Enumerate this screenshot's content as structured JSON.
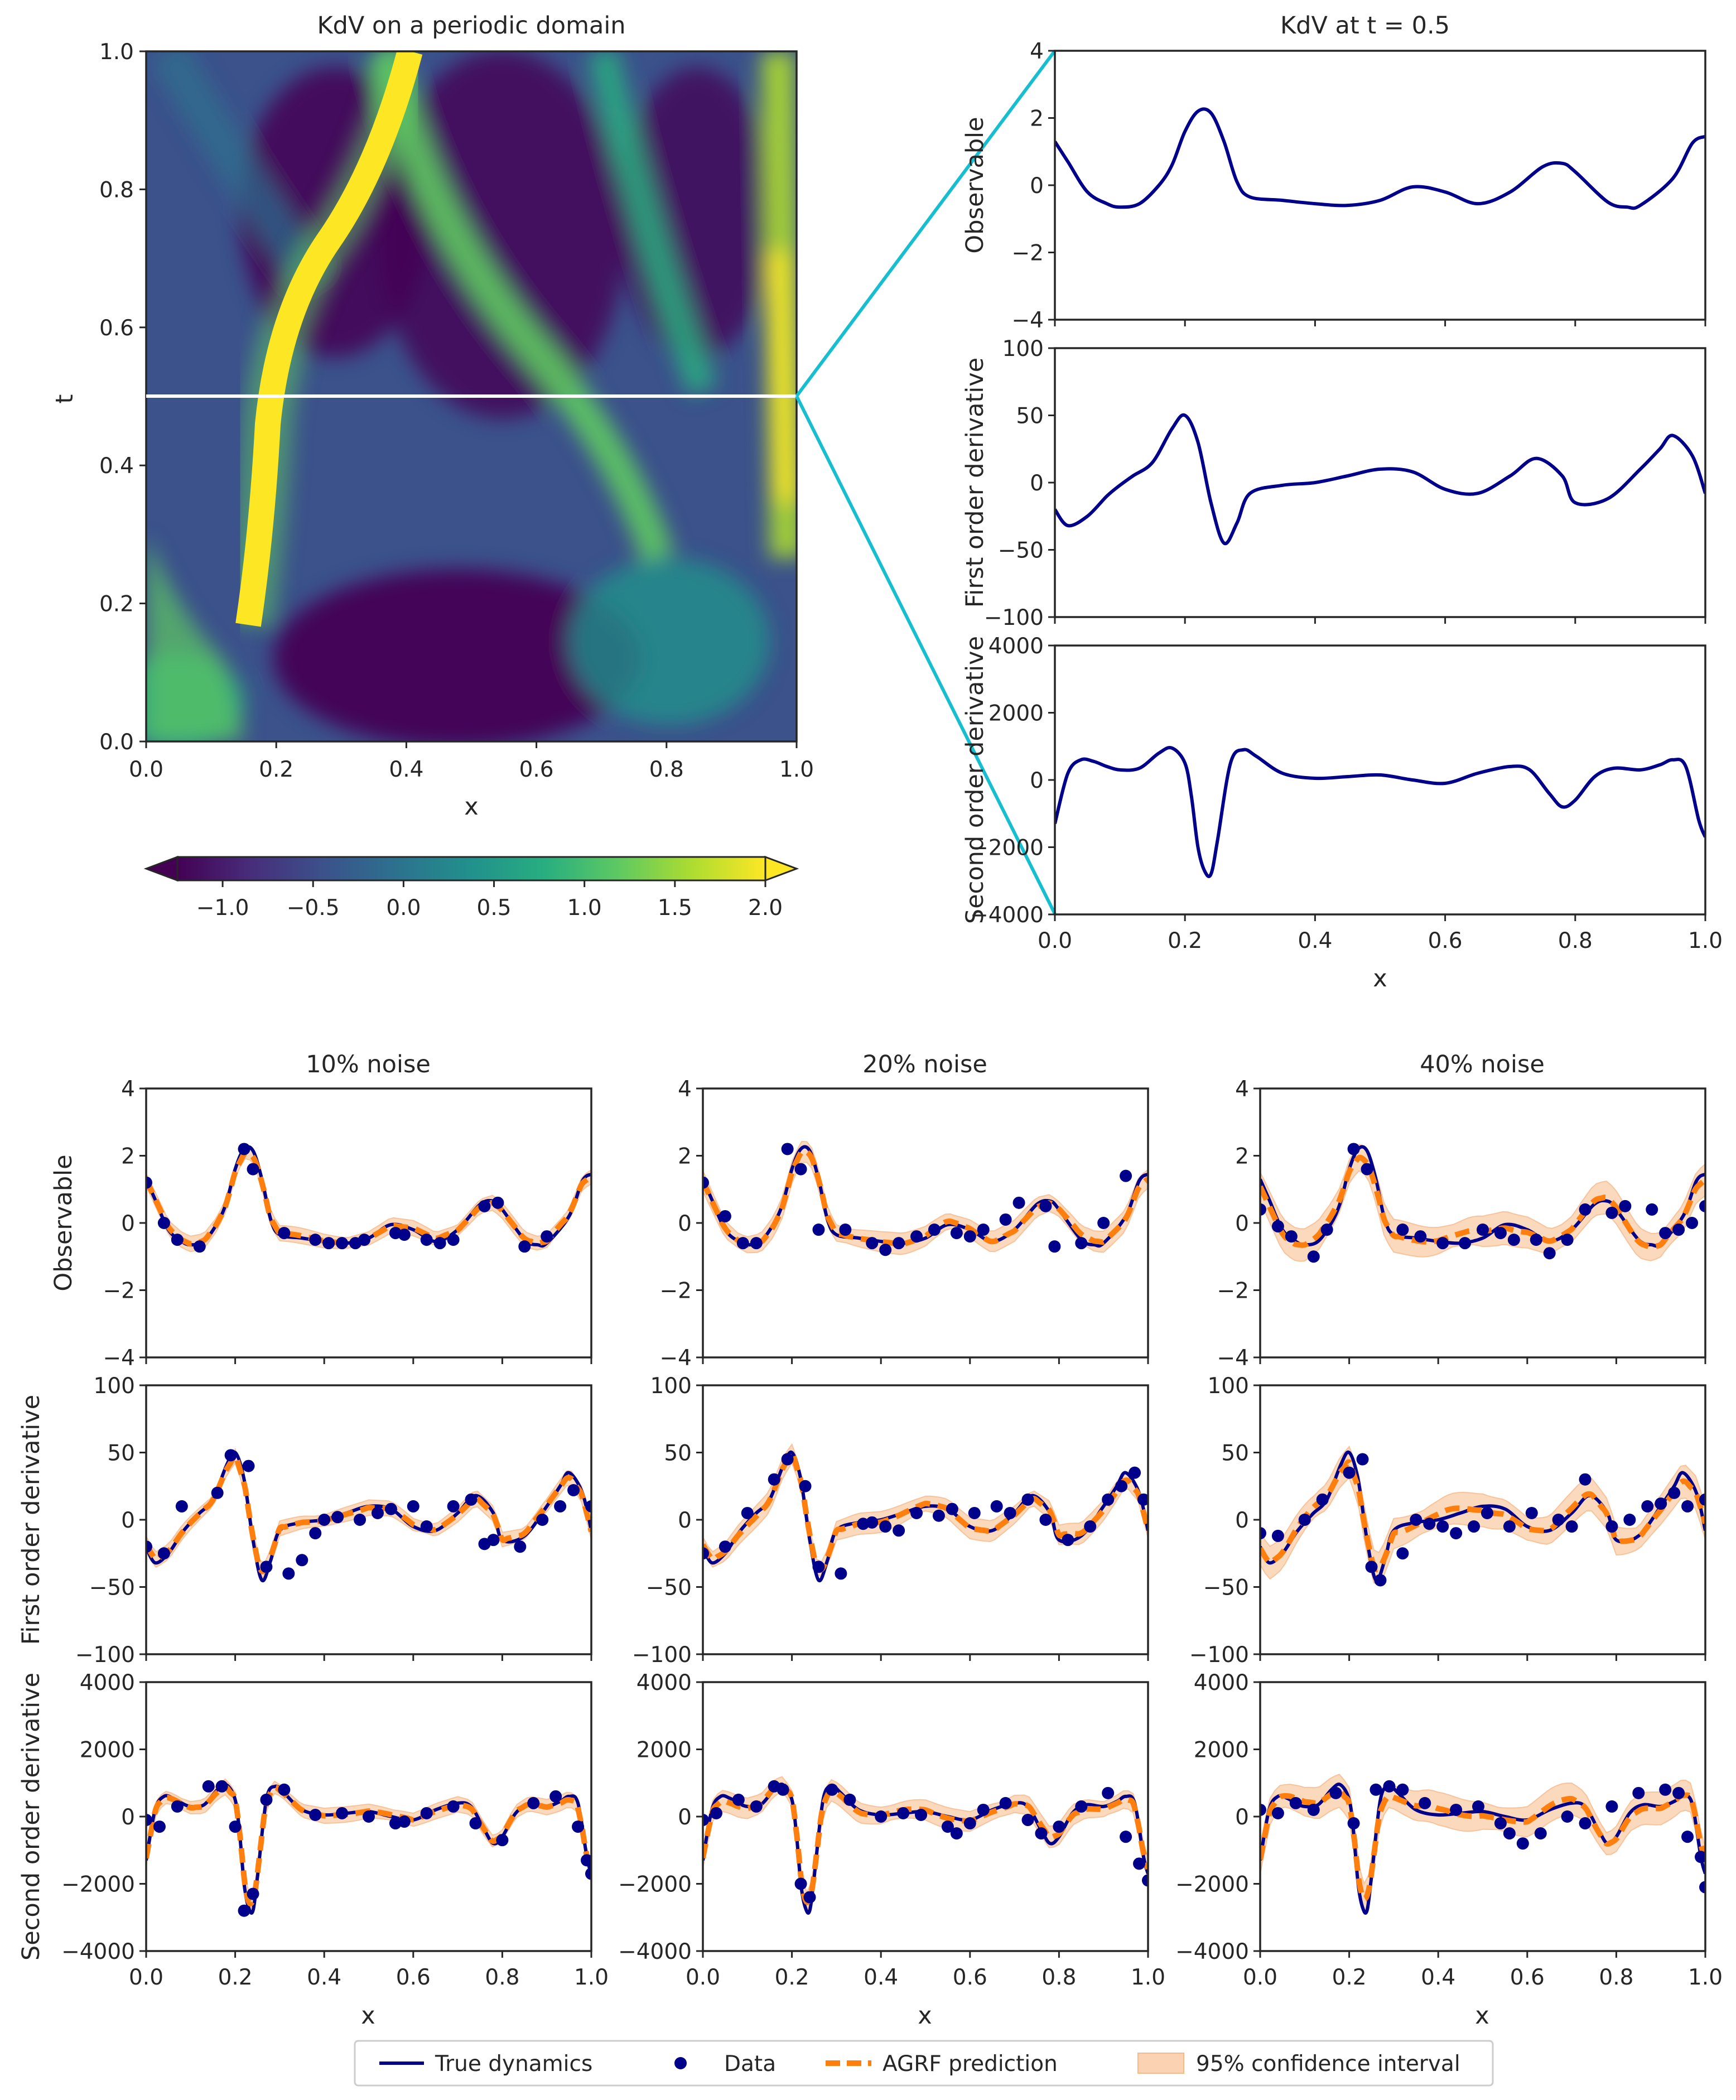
{
  "chart_data": [
    {
      "id": "heatmap",
      "type": "heatmap",
      "title": "KdV on a periodic domain",
      "xlabel": "x",
      "ylabel": "t",
      "xlim": [
        0,
        1
      ],
      "ylim": [
        0,
        1
      ],
      "x_ticks": [
        "0.0",
        "0.2",
        "0.4",
        "0.6",
        "0.8",
        "1.0"
      ],
      "y_ticks": [
        "0.0",
        "0.2",
        "0.4",
        "0.6",
        "0.8",
        "1.0"
      ],
      "highlight_t": 0.5,
      "colorbar": {
        "colormap": "viridis",
        "range": [
          -1.25,
          2.0
        ],
        "extend": "both",
        "ticks": [
          "−1.0",
          "−0.5",
          "0.0",
          "0.5",
          "1.0",
          "1.5",
          "2.0"
        ]
      }
    },
    {
      "id": "slice",
      "type": "line",
      "title": "KdV at t = 0.5",
      "xlabel": "x",
      "x_ticks": [
        "0.0",
        "0.2",
        "0.4",
        "0.6",
        "0.8",
        "1.0"
      ],
      "xlim": [
        0,
        1
      ],
      "panels": [
        {
          "ylabel": "Observable",
          "ylim": [
            -4,
            4
          ],
          "y_ticks": [
            "−4",
            "−2",
            "0",
            "2",
            "4"
          ],
          "true": {
            "x": [
              0,
              0.02,
              0.05,
              0.08,
              0.1,
              0.13,
              0.16,
              0.18,
              0.2,
              0.22,
              0.24,
              0.26,
              0.28,
              0.3,
              0.35,
              0.4,
              0.45,
              0.5,
              0.55,
              0.6,
              0.65,
              0.7,
              0.75,
              0.78,
              0.8,
              0.85,
              0.88,
              0.9,
              0.95,
              0.98,
              1.0
            ],
            "y": [
              1.3,
              0.7,
              -0.2,
              -0.55,
              -0.65,
              -0.55,
              0.0,
              0.6,
              1.6,
              2.2,
              2.15,
              1.3,
              0.1,
              -0.35,
              -0.45,
              -0.55,
              -0.6,
              -0.45,
              -0.05,
              -0.2,
              -0.55,
              -0.2,
              0.55,
              0.65,
              0.4,
              -0.5,
              -0.65,
              -0.6,
              0.2,
              1.25,
              1.45
            ]
          }
        },
        {
          "ylabel": "First order derivative",
          "ylim": [
            -100,
            100
          ],
          "y_ticks": [
            "−100",
            "−50",
            "0",
            "50",
            "100"
          ],
          "true": {
            "x": [
              0,
              0.02,
              0.05,
              0.08,
              0.1,
              0.12,
              0.15,
              0.18,
              0.2,
              0.22,
              0.24,
              0.26,
              0.28,
              0.3,
              0.35,
              0.4,
              0.45,
              0.5,
              0.55,
              0.6,
              0.65,
              0.7,
              0.74,
              0.78,
              0.8,
              0.85,
              0.9,
              0.93,
              0.95,
              0.98,
              1.0
            ],
            "y": [
              -20,
              -32,
              -25,
              -10,
              -2,
              5,
              15,
              40,
              50,
              30,
              -15,
              -45,
              -30,
              -8,
              -2,
              0,
              5,
              10,
              8,
              -5,
              -8,
              5,
              18,
              5,
              -15,
              -12,
              10,
              25,
              35,
              20,
              -8
            ]
          }
        },
        {
          "ylabel": "Second order derivative",
          "ylim": [
            -4000,
            4000
          ],
          "y_ticks": [
            "−4000",
            "−2000",
            "0",
            "2000",
            "4000"
          ],
          "true": {
            "x": [
              0,
              0.02,
              0.04,
              0.06,
              0.08,
              0.1,
              0.13,
              0.16,
              0.18,
              0.2,
              0.21,
              0.22,
              0.23,
              0.24,
              0.25,
              0.27,
              0.29,
              0.31,
              0.35,
              0.4,
              0.45,
              0.5,
              0.55,
              0.6,
              0.65,
              0.7,
              0.73,
              0.76,
              0.78,
              0.8,
              0.83,
              0.86,
              0.9,
              0.93,
              0.95,
              0.97,
              0.99,
              1.0
            ],
            "y": [
              -1300,
              200,
              600,
              550,
              400,
              300,
              350,
              800,
              950,
              500,
              -500,
              -2000,
              -2700,
              -2800,
              -1800,
              500,
              900,
              700,
              200,
              50,
              100,
              150,
              0,
              -100,
              200,
              400,
              300,
              -400,
              -800,
              -600,
              100,
              350,
              300,
              450,
              600,
              400,
              -1200,
              -1700
            ]
          }
        }
      ]
    },
    {
      "id": "noise_grid",
      "type": "line",
      "xlabel": "x",
      "xlim": [
        0,
        1
      ],
      "x_ticks": [
        "0.0",
        "0.2",
        "0.4",
        "0.6",
        "0.8",
        "1.0"
      ],
      "columns": [
        "10% noise",
        "20% noise",
        "40% noise"
      ],
      "noise_levels": [
        0.1,
        0.2,
        0.4
      ],
      "rows": [
        {
          "ylabel": "Observable",
          "ylim": [
            -4,
            4
          ],
          "y_ticks": [
            "−4",
            "−2",
            "0",
            "2",
            "4"
          ]
        },
        {
          "ylabel": "First order derivative",
          "ylim": [
            -100,
            100
          ],
          "y_ticks": [
            "−100",
            "−50",
            "0",
            "50",
            "100"
          ]
        },
        {
          "ylabel": "Second order derivative",
          "ylim": [
            -4000,
            4000
          ],
          "y_ticks": [
            "−4000",
            "−2000",
            "0",
            "2000",
            "4000"
          ]
        }
      ],
      "data_x": [
        0.01,
        0.04,
        0.07,
        0.1,
        0.13,
        0.16,
        0.19,
        0.22,
        0.23,
        0.25,
        0.3,
        0.33,
        0.36,
        0.4,
        0.43,
        0.46,
        0.5,
        0.55,
        0.57,
        0.6,
        0.65,
        0.68,
        0.72,
        0.75,
        0.78,
        0.83,
        0.87,
        0.9,
        0.93,
        0.96,
        0.98,
        0.99
      ],
      "data_points": [
        [
          {
            "x": [
              0.0,
              0.04,
              0.07,
              0.12,
              0.22,
              0.24,
              0.31,
              0.38,
              0.41,
              0.44,
              0.47,
              0.49,
              0.56,
              0.58,
              0.63,
              0.66,
              0.69,
              0.76,
              0.79,
              0.85,
              0.9
            ],
            "y": [
              1.2,
              0.0,
              -0.5,
              -0.7,
              2.2,
              1.6,
              -0.3,
              -0.5,
              -0.6,
              -0.6,
              -0.6,
              -0.5,
              -0.3,
              -0.35,
              -0.5,
              -0.6,
              -0.5,
              0.5,
              0.6,
              -0.7,
              -0.4
            ]
          },
          {
            "x": [
              0.0,
              0.04,
              0.08,
              0.16,
              0.19,
              0.23,
              0.27,
              0.32,
              0.35,
              0.38,
              0.4,
              0.43,
              0.48,
              0.52,
              0.55,
              0.6,
              0.63,
              0.69,
              0.73,
              0.76,
              0.78,
              0.84,
              0.89,
              0.93,
              0.96,
              1.0
            ],
            "y": [
              -20,
              -25,
              10,
              20,
              48,
              40,
              -35,
              -40,
              -30,
              -10,
              0,
              2,
              0,
              5,
              8,
              10,
              -5,
              10,
              15,
              -18,
              -15,
              -20,
              0,
              10,
              22,
              10
            ]
          },
          {
            "x": [
              0.0,
              0.03,
              0.07,
              0.14,
              0.17,
              0.2,
              0.22,
              0.24,
              0.27,
              0.31,
              0.38,
              0.44,
              0.5,
              0.56,
              0.58,
              0.63,
              0.69,
              0.74,
              0.8,
              0.87,
              0.92,
              0.97,
              0.99,
              1.0
            ],
            "y": [
              -100,
              -300,
              300,
              900,
              900,
              -300,
              -2800,
              -2300,
              500,
              800,
              50,
              100,
              0,
              -200,
              -150,
              100,
              300,
              -200,
              -700,
              400,
              600,
              -300,
              -1300,
              -1700
            ]
          }
        ],
        [
          {
            "x": [
              0.0,
              0.05,
              0.09,
              0.12,
              0.19,
              0.22,
              0.26,
              0.32,
              0.38,
              0.41,
              0.44,
              0.48,
              0.52,
              0.57,
              0.6,
              0.63,
              0.68,
              0.71,
              0.77,
              0.79,
              0.85,
              0.9,
              0.95
            ],
            "y": [
              1.2,
              0.2,
              -0.6,
              -0.6,
              2.2,
              1.6,
              -0.2,
              -0.2,
              -0.6,
              -0.8,
              -0.6,
              -0.4,
              -0.2,
              -0.3,
              -0.4,
              -0.2,
              0.1,
              0.6,
              0.5,
              -0.7,
              -0.6,
              0.0,
              1.4
            ]
          },
          {
            "x": [
              0.0,
              0.05,
              0.1,
              0.16,
              0.19,
              0.23,
              0.26,
              0.31,
              0.36,
              0.38,
              0.41,
              0.44,
              0.48,
              0.53,
              0.56,
              0.61,
              0.66,
              0.69,
              0.73,
              0.77,
              0.82,
              0.87,
              0.91,
              0.94,
              0.97,
              0.99
            ],
            "y": [
              -25,
              -20,
              5,
              30,
              45,
              25,
              -35,
              -40,
              -3,
              -2,
              -5,
              -8,
              5,
              3,
              8,
              5,
              10,
              5,
              15,
              0,
              -15,
              -5,
              15,
              25,
              35,
              15
            ]
          },
          {
            "x": [
              0.0,
              0.03,
              0.08,
              0.12,
              0.16,
              0.18,
              0.22,
              0.24,
              0.29,
              0.33,
              0.4,
              0.45,
              0.49,
              0.55,
              0.57,
              0.6,
              0.63,
              0.68,
              0.73,
              0.76,
              0.8,
              0.85,
              0.91,
              0.95,
              0.98,
              1.0
            ],
            "y": [
              -100,
              100,
              500,
              300,
              900,
              800,
              -2000,
              -2400,
              800,
              500,
              0,
              100,
              50,
              -300,
              -500,
              -200,
              200,
              400,
              -100,
              -500,
              -300,
              300,
              700,
              -600,
              -1400,
              -1900
            ]
          }
        ],
        [
          {
            "x": [
              0.0,
              0.04,
              0.07,
              0.12,
              0.15,
              0.21,
              0.24,
              0.32,
              0.36,
              0.41,
              0.46,
              0.5,
              0.54,
              0.57,
              0.62,
              0.65,
              0.69,
              0.73,
              0.79,
              0.82,
              0.88,
              0.91,
              0.94,
              0.97,
              1.0
            ],
            "y": [
              0.4,
              -0.1,
              -0.4,
              -1.0,
              -0.2,
              2.2,
              1.6,
              -0.2,
              -0.4,
              -0.6,
              -0.6,
              -0.2,
              -0.3,
              -0.5,
              -0.5,
              -0.9,
              -0.5,
              0.4,
              0.3,
              0.5,
              0.4,
              -0.3,
              -0.2,
              0.0,
              0.5
            ]
          },
          {
            "x": [
              0.0,
              0.04,
              0.1,
              0.14,
              0.2,
              0.23,
              0.25,
              0.27,
              0.32,
              0.35,
              0.38,
              0.41,
              0.44,
              0.48,
              0.51,
              0.56,
              0.61,
              0.67,
              0.7,
              0.73,
              0.79,
              0.83,
              0.87,
              0.9,
              0.93,
              0.96,
              1.0
            ],
            "y": [
              -10,
              -12,
              0,
              15,
              35,
              45,
              -35,
              -45,
              -25,
              0,
              -3,
              -5,
              -10,
              -5,
              5,
              -5,
              5,
              0,
              -5,
              30,
              -5,
              0,
              10,
              12,
              20,
              10,
              15
            ]
          },
          {
            "x": [
              0.0,
              0.04,
              0.08,
              0.12,
              0.17,
              0.21,
              0.26,
              0.29,
              0.32,
              0.37,
              0.44,
              0.49,
              0.54,
              0.56,
              0.59,
              0.63,
              0.69,
              0.73,
              0.79,
              0.85,
              0.91,
              0.94,
              0.96,
              0.99,
              1.0
            ],
            "y": [
              200,
              100,
              400,
              200,
              700,
              -200,
              800,
              900,
              800,
              400,
              200,
              300,
              -200,
              -500,
              -800,
              -500,
              0,
              -200,
              300,
              700,
              800,
              700,
              -600,
              -1200,
              -2100
            ]
          }
        ]
      ],
      "legend": {
        "entries": [
          "True dynamics",
          "Data",
          "AGRF prediction",
          "95% confidence interval"
        ],
        "placement": "bottom-center"
      },
      "colors": {
        "true": "#00008b",
        "data": "#00008b",
        "prediction": "#ff7f0e",
        "band": "#fbd3b2",
        "band_edge": "#f6b98a",
        "connector": "#17becf"
      }
    }
  ]
}
